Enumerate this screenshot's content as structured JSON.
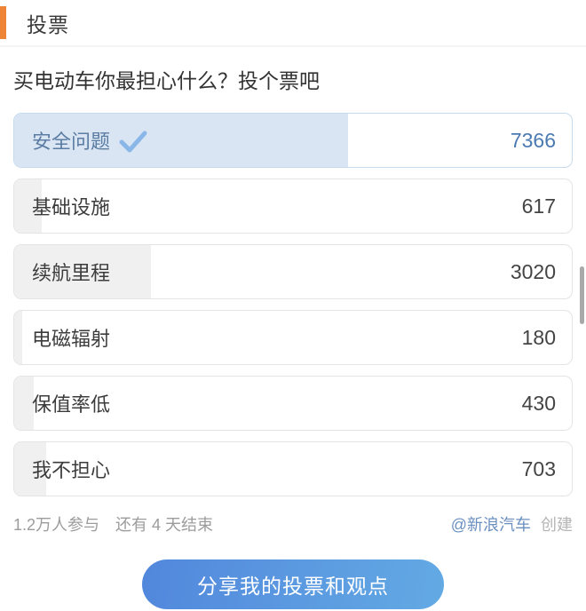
{
  "header": {
    "title": "投票"
  },
  "question": "买电动车你最担心什么？投个票吧",
  "poll": {
    "options": [
      {
        "label": "安全问题",
        "votes": 7366,
        "percent": 59.8,
        "selected": true
      },
      {
        "label": "基础设施",
        "votes": 617,
        "percent": 5.0,
        "selected": false
      },
      {
        "label": "续航里程",
        "votes": 3020,
        "percent": 24.5,
        "selected": false
      },
      {
        "label": "电磁辐射",
        "votes": 180,
        "percent": 1.5,
        "selected": false
      },
      {
        "label": "保值率低",
        "votes": 430,
        "percent": 3.5,
        "selected": false
      },
      {
        "label": "我不担心",
        "votes": 703,
        "percent": 5.7,
        "selected": false
      }
    ]
  },
  "footer": {
    "participants": "1.2万人参与",
    "time_left": "还有 4 天结束",
    "creator_handle": "@新浪汽车",
    "creator_suffix": "创建"
  },
  "share_button": {
    "label": "分享我的投票和观点"
  },
  "colors": {
    "accent_orange": "#ee8435",
    "selected_fill": "#d9e5f3",
    "selected_border": "#c6daee",
    "selected_text": "#5b7ca3",
    "selected_count": "#4b7ab1",
    "check_icon": "#8ab7e8",
    "unselected_fill": "#f0f0f0",
    "button_gradient_start": "#5287dc",
    "button_gradient_end": "#63aae4",
    "footer_gray": "#9c9c9c",
    "creator_blue": "#6b90c0"
  }
}
